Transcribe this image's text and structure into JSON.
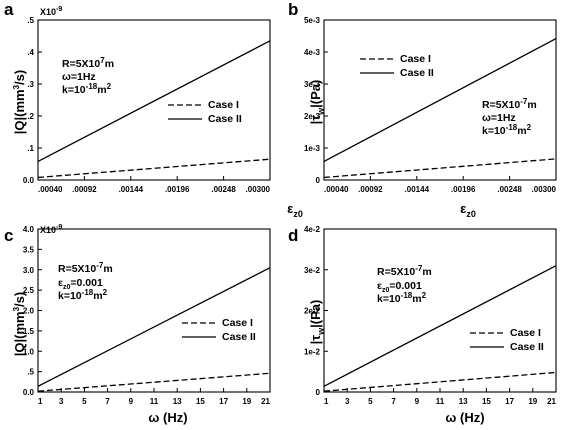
{
  "chart_data": [
    {
      "type": "line",
      "panel_letter": "a",
      "x": [
        0.0004,
        0.003
      ],
      "xticks": [
        ".00040",
        ".00092",
        ".00144",
        ".00196",
        ".00248",
        ".00300"
      ],
      "xlim": [
        0.0004,
        0.003
      ],
      "ylim": [
        0,
        0.5
      ],
      "yticks": [
        "0.0",
        ".1",
        ".2",
        ".3",
        ".4",
        ".5"
      ],
      "multiplier": "X10-9",
      "xlabel": "εz0",
      "ylabel": "|Q|(mm3/s)",
      "series": [
        {
          "name": "Case I",
          "dash": "dashed",
          "values": [
            0.008,
            0.065
          ]
        },
        {
          "name": "Case II",
          "dash": "solid",
          "values": [
            0.058,
            0.435
          ]
        }
      ],
      "annotations": [
        "R=5X10-7m",
        "ω=1Hz",
        "k=10-18m2"
      ],
      "legend_position": "center-right"
    },
    {
      "type": "line",
      "panel_letter": "b",
      "x": [
        0.0004,
        0.003
      ],
      "xticks": [
        ".00040",
        ".00092",
        ".00144",
        ".00196",
        ".00248",
        ".00300"
      ],
      "xlim": [
        0.0004,
        0.003
      ],
      "ylim": [
        0,
        0.005
      ],
      "yticks": [
        "0",
        "1e-3",
        "2e-3",
        "3e-3",
        "4e-3",
        "5e-3"
      ],
      "multiplier": "",
      "xlabel": "εz0",
      "ylabel": "|τw|(Pa)",
      "series": [
        {
          "name": "Case I",
          "dash": "dashed",
          "values": [
            8e-05,
            0.00066
          ]
        },
        {
          "name": "Case II",
          "dash": "solid",
          "values": [
            0.00058,
            0.00442
          ]
        }
      ],
      "annotations": [
        "R=5X10-7m",
        "ω=1Hz",
        "k=10-18m2"
      ],
      "legend_position": "top-left"
    },
    {
      "type": "line",
      "panel_letter": "c",
      "x": [
        1,
        21
      ],
      "xticks": [
        "1",
        "3",
        "5",
        "7",
        "9",
        "11",
        "13",
        "15",
        "17",
        "19",
        "21"
      ],
      "xlim": [
        1,
        21
      ],
      "ylim": [
        0,
        4
      ],
      "yticks": [
        "0.0",
        ".5",
        "1.0",
        "1.5",
        "2.0",
        "2.5",
        "3.0",
        "3.5",
        "4.0"
      ],
      "multiplier": "X10-9",
      "xlabel": "ω (Hz)",
      "ylabel": "|Q|(mm3/s)",
      "series": [
        {
          "name": "Case I",
          "dash": "dashed",
          "values": [
            0.02,
            0.46
          ]
        },
        {
          "name": "Case II",
          "dash": "solid",
          "values": [
            0.14,
            3.05
          ]
        }
      ],
      "annotations": [
        "R=5X10-7m",
        "εz0=0.001",
        "k=10-18m2"
      ],
      "legend_position": "center-right"
    },
    {
      "type": "line",
      "panel_letter": "d",
      "x": [
        1,
        21
      ],
      "xticks": [
        "1",
        "3",
        "5",
        "7",
        "9",
        "11",
        "13",
        "15",
        "17",
        "19",
        "21"
      ],
      "xlim": [
        1,
        21
      ],
      "ylim": [
        0,
        0.04
      ],
      "yticks": [
        "0",
        "1e-2",
        "2e-2",
        "3e-2",
        "4e-2"
      ],
      "multiplier": "",
      "xlabel": "ω (Hz)",
      "ylabel": "|τw|(Pa)",
      "series": [
        {
          "name": "Case I",
          "dash": "dashed",
          "values": [
            0.0002,
            0.0048
          ]
        },
        {
          "name": "Case II",
          "dash": "solid",
          "values": [
            0.0014,
            0.031
          ]
        }
      ],
      "annotations": [
        "R=5X10-7m",
        "εz0=0.001",
        "k=10-18m2"
      ],
      "legend_position": "center-right"
    }
  ]
}
